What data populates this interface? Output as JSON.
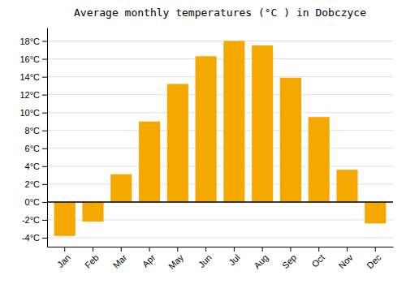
{
  "chart_data": {
    "type": "bar",
    "title": "Average monthly temperatures (°C ) in Dobczyce",
    "categories": [
      "Jan",
      "Feb",
      "Mar",
      "Apr",
      "May",
      "Jun",
      "Jul",
      "Aug",
      "Sep",
      "Oct",
      "Nov",
      "Dec"
    ],
    "values": [
      -3.8,
      -2.2,
      3.1,
      9.0,
      13.2,
      16.3,
      18.0,
      17.5,
      13.9,
      9.5,
      3.6,
      -2.4
    ],
    "color": "#F5A800",
    "ylim": [
      -5,
      19.5
    ],
    "yticks": [
      {
        "value": -4,
        "label": "-4°C"
      },
      {
        "value": -2,
        "label": "-2°C"
      },
      {
        "value": 0,
        "label": "0°C"
      },
      {
        "value": 2,
        "label": "2°C"
      },
      {
        "value": 4,
        "label": "4°C"
      },
      {
        "value": 6,
        "label": "6°C"
      },
      {
        "value": 8,
        "label": "8°C"
      },
      {
        "value": 10,
        "label": "10°C"
      },
      {
        "value": 12,
        "label": "12°C"
      },
      {
        "value": 14,
        "label": "14°C"
      },
      {
        "value": 16,
        "label": "16°C"
      },
      {
        "value": 18,
        "label": "18°C"
      }
    ],
    "grid": true
  }
}
